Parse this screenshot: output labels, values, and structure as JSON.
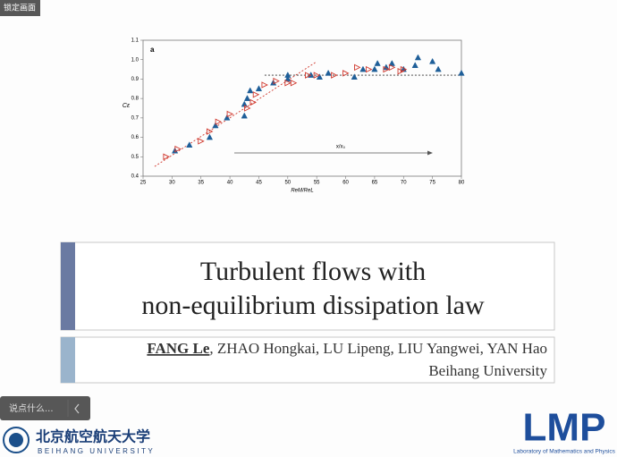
{
  "overlay": {
    "lock": "锁定画面",
    "comment": "说点什么..."
  },
  "chart_data": {
    "type": "scatter",
    "panel": "a",
    "xlabel": "ReM/ReL",
    "ylabel": "Cε",
    "annotation": "x/x₀",
    "xlim": [
      25,
      80
    ],
    "ylim": [
      0.4,
      1.1
    ],
    "xticks": [
      25,
      30,
      35,
      40,
      45,
      50,
      55,
      60,
      65,
      70,
      75,
      80
    ],
    "yticks": [
      0.4,
      0.5,
      0.6,
      0.7,
      0.8,
      0.9,
      {
        "value": 1,
        "label": "1.0"
      },
      1.1
    ],
    "series": [
      {
        "color": "#1f5f99",
        "marker": "filled",
        "x": [
          30.5,
          33,
          36.5,
          37.5,
          39.5,
          42.5,
          42.5,
          43,
          43.5,
          45,
          47.5,
          50,
          50,
          54,
          55.5,
          57,
          61.5,
          63,
          65,
          65.5,
          67,
          68,
          70,
          72,
          72.5,
          75,
          76,
          80
        ],
        "values": [
          0.53,
          0.56,
          0.6,
          0.66,
          0.7,
          0.71,
          0.77,
          0.8,
          0.84,
          0.85,
          0.88,
          0.9,
          0.92,
          0.92,
          0.91,
          0.93,
          0.91,
          0.95,
          0.95,
          0.98,
          0.96,
          0.98,
          0.95,
          0.97,
          1.01,
          0.99,
          0.95,
          0.93
        ]
      },
      {
        "color": "#d0392e",
        "marker": "open",
        "x": [
          29,
          31,
          35,
          36.5,
          38,
          40,
          43,
          44,
          44.5,
          46,
          48,
          50,
          51,
          53.5,
          55,
          58,
          60,
          62,
          64,
          67,
          68,
          69.5,
          70
        ],
        "values": [
          0.5,
          0.54,
          0.58,
          0.63,
          0.68,
          0.72,
          0.75,
          0.78,
          0.82,
          0.87,
          0.89,
          0.88,
          0.88,
          0.92,
          0.92,
          0.92,
          0.93,
          0.96,
          0.95,
          0.95,
          0.96,
          0.94,
          0.95
        ]
      }
    ],
    "lines": [
      {
        "color": "#d0392e",
        "x": [
          27,
          55
        ],
        "values": [
          0.45,
          0.99
        ]
      },
      {
        "color": "#333333",
        "x": [
          46,
          80
        ],
        "values": [
          0.92,
          0.92
        ]
      }
    ]
  },
  "title": {
    "line1": "Turbulent flows with",
    "line2": "non-equilibrium dissipation law"
  },
  "authors": {
    "presenter": "FANG Le",
    "others": ", ZHAO Hongkai, LU Lipeng, LIU Yangwei, YAN Hao",
    "affiliation": "Beihang University"
  },
  "logos": {
    "beihang_cn": "北京航空航天大学",
    "beihang_en": "BEIHANG UNIVERSITY",
    "lmp": "LMP",
    "lmp_full": "Laboratory of Mathematics and Physics"
  }
}
